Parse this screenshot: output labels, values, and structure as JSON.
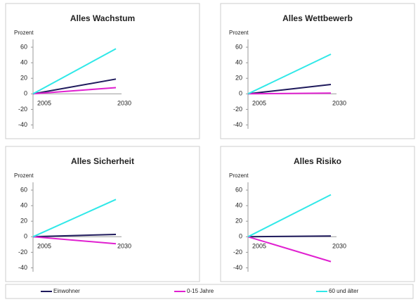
{
  "legend": [
    {
      "name": "Einwohner",
      "color": "#1f1a5c"
    },
    {
      "name": "0-15 Jahre",
      "color": "#e020d0"
    },
    {
      "name": "60 und älter",
      "color": "#30e8e8"
    }
  ],
  "chart_data": [
    {
      "type": "line",
      "title": "Alles Wachstum",
      "y_label": "Prozent",
      "categories": [
        "2005",
        "2030"
      ],
      "series": [
        {
          "values": [
            0,
            19
          ]
        },
        {
          "values": [
            0,
            8
          ]
        },
        {
          "values": [
            0,
            58
          ]
        }
      ],
      "ylim": [
        -45,
        70
      ],
      "yticks": [
        -40,
        -20,
        0,
        20,
        40,
        60
      ]
    },
    {
      "type": "line",
      "title": "Alles Wettbewerb",
      "y_label": "Prozent",
      "categories": [
        "2005",
        "2030"
      ],
      "series": [
        {
          "values": [
            0,
            12
          ]
        },
        {
          "values": [
            0,
            1
          ]
        },
        {
          "values": [
            0,
            51
          ]
        }
      ],
      "ylim": [
        -45,
        70
      ],
      "yticks": [
        -40,
        -20,
        0,
        20,
        40,
        60
      ]
    },
    {
      "type": "line",
      "title": "Alles Sicherheit",
      "y_label": "Prozent",
      "categories": [
        "2005",
        "2030"
      ],
      "series": [
        {
          "values": [
            0,
            3
          ]
        },
        {
          "values": [
            0,
            -9
          ]
        },
        {
          "values": [
            0,
            48
          ]
        }
      ],
      "ylim": [
        -45,
        70
      ],
      "yticks": [
        -40,
        -20,
        0,
        20,
        40,
        60
      ]
    },
    {
      "type": "line",
      "title": "Alles Risiko",
      "y_label": "Prozent",
      "categories": [
        "2005",
        "2030"
      ],
      "series": [
        {
          "values": [
            0,
            1
          ]
        },
        {
          "values": [
            0,
            -32
          ]
        },
        {
          "values": [
            0,
            54
          ]
        }
      ],
      "ylim": [
        -45,
        70
      ],
      "yticks": [
        -40,
        -20,
        0,
        20,
        40,
        60
      ]
    }
  ]
}
